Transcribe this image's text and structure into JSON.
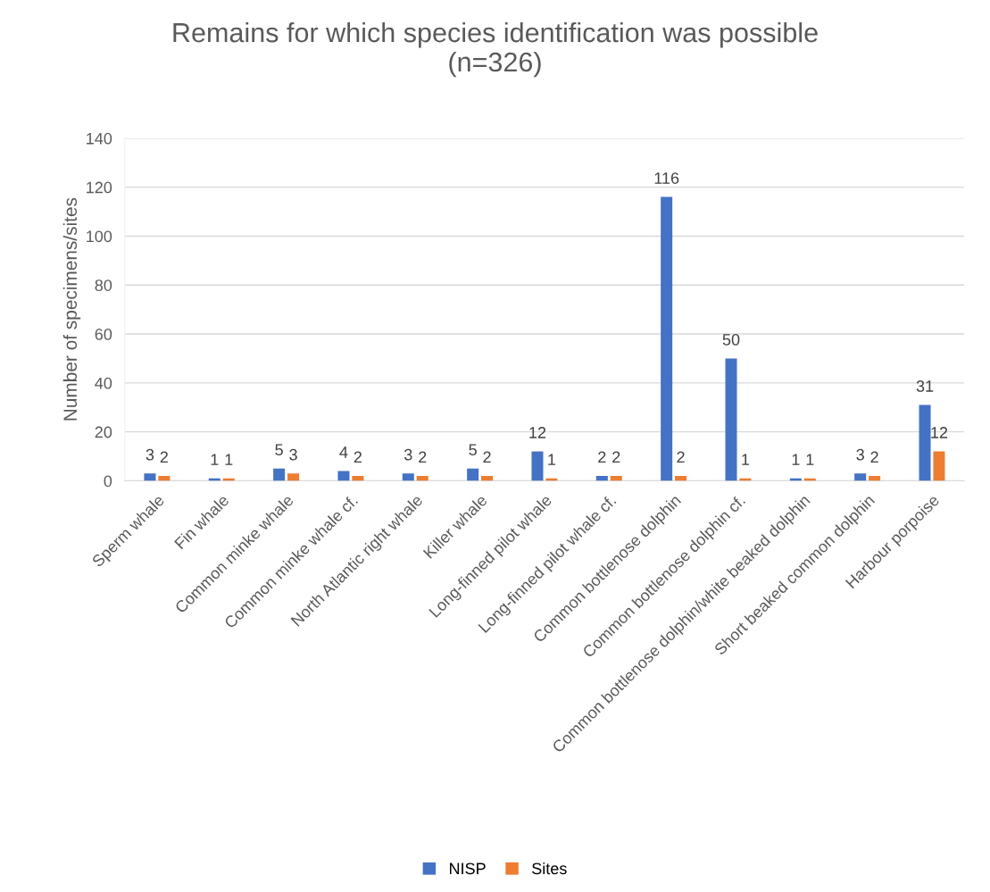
{
  "chart_data": {
    "type": "bar",
    "title": "Remains for which species identification was possible\n(n=326)",
    "ylabel": "Number of specimens/sites",
    "categories": [
      "Sperm whale",
      "Fin whale",
      "Common minke whale",
      "Common minke whale cf.",
      "North Atlantic right whale",
      "Killer whale",
      "Long-finned pilot whale",
      "Long-finned pilot whale cf.",
      "Common bottlenose dolphin",
      "Common bottlenose dolphin cf.",
      "Common bottlenose dolphin/white beaked dolphin",
      "Short beaked common dolphin",
      "Harbour porpoise"
    ],
    "series": [
      {
        "name": "NISP",
        "color": "#4472c4",
        "values": [
          3,
          1,
          5,
          4,
          3,
          5,
          12,
          2,
          116,
          50,
          1,
          3,
          31
        ]
      },
      {
        "name": "Sites",
        "color": "#ed7d31",
        "values": [
          2,
          1,
          3,
          2,
          2,
          2,
          1,
          2,
          2,
          1,
          1,
          2,
          12
        ]
      }
    ],
    "ylim": [
      0,
      140
    ],
    "yticks": [
      0,
      20,
      40,
      60,
      80,
      100,
      120,
      140
    ],
    "grid": "y",
    "legend": "bottom",
    "data_labels": true
  }
}
